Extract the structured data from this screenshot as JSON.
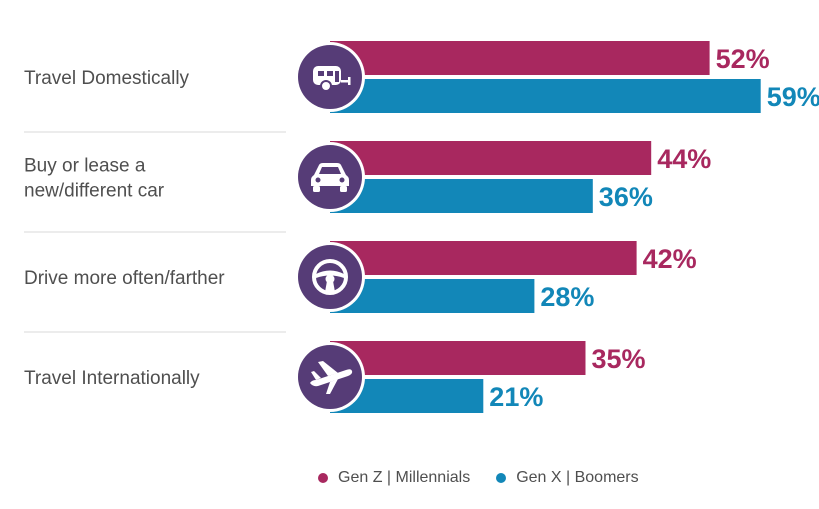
{
  "colors": {
    "series1": "#a8285f",
    "series2": "#1287b8",
    "icon_circle": "#563c77",
    "divider": "#d9d9d9"
  },
  "chart_data": {
    "type": "bar",
    "orientation": "horizontal",
    "categories": [
      "Travel Domestically",
      "Buy or lease a new/different car",
      "Drive more often/farther",
      "Travel Internationally"
    ],
    "category_lines": [
      [
        "Travel Domestically"
      ],
      [
        "Buy or lease a",
        "new/different car"
      ],
      [
        "Drive more often/farther"
      ],
      [
        "Travel Internationally"
      ]
    ],
    "icons": [
      "camper-trailer-icon",
      "car-icon",
      "steering-wheel-icon",
      "airplane-icon"
    ],
    "series": [
      {
        "name": "Gen Z | Millennials",
        "values": [
          52,
          44,
          42,
          35
        ],
        "labels": [
          "52%",
          "44%",
          "42%",
          "35%"
        ]
      },
      {
        "name": "Gen X | Boomers",
        "values": [
          59,
          36,
          28,
          21
        ],
        "labels": [
          "59%",
          "36%",
          "28%",
          "21%"
        ]
      }
    ],
    "unit": "%",
    "xlim": [
      0,
      100
    ],
    "grid": false,
    "legend_position": "bottom"
  }
}
